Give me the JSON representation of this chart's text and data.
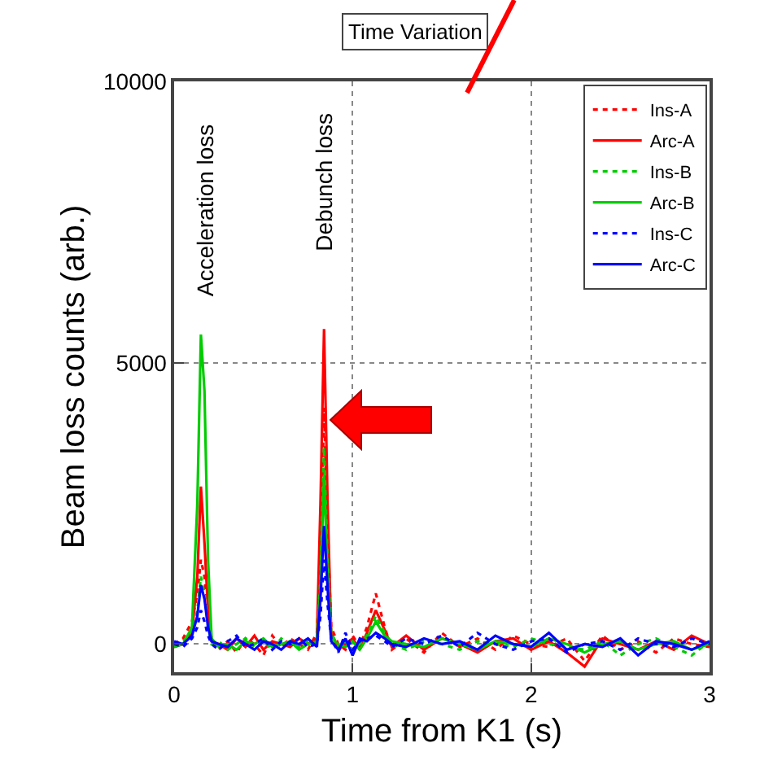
{
  "chart_data": {
    "type": "line",
    "xlabel": "Time from K1 (s)",
    "ylabel": "Beam loss counts (arb.)",
    "xlim": [
      0,
      3
    ],
    "xticks": [
      0,
      1,
      2,
      3
    ],
    "ylim": [
      -500,
      10000
    ],
    "yticks": [
      0,
      5000,
      10000
    ],
    "grid": true,
    "legend": "top right",
    "marker": "none",
    "annotations": [
      "Time Variation",
      "Acceleration loss",
      "Debunch loss"
    ],
    "x": [
      0,
      0.05,
      0.1,
      0.13,
      0.15,
      0.17,
      0.19,
      0.21,
      0.25,
      0.3,
      0.35,
      0.4,
      0.45,
      0.5,
      0.55,
      0.6,
      0.65,
      0.7,
      0.75,
      0.8,
      0.82,
      0.84,
      0.86,
      0.88,
      0.92,
      0.96,
      1.0,
      1.04,
      1.08,
      1.13,
      1.18,
      1.22,
      1.3,
      1.4,
      1.5,
      1.6,
      1.7,
      1.8,
      1.9,
      2.0,
      2.1,
      2.2,
      2.3,
      2.4,
      2.5,
      2.6,
      2.7,
      2.8,
      2.9,
      3.0
    ],
    "series": [
      {
        "name": "Ins-A",
        "color": "#ff0000",
        "line_style": "dotted",
        "values": [
          0,
          100,
          400,
          900,
          1500,
          1200,
          500,
          100,
          -100,
          50,
          -150,
          100,
          0,
          -200,
          150,
          -50,
          100,
          0,
          -100,
          200,
          1500,
          4200,
          2000,
          300,
          0,
          -100,
          150,
          -50,
          300,
          900,
          300,
          -100,
          100,
          -150,
          200,
          -50,
          100,
          -100,
          150,
          0,
          -50,
          100,
          -300,
          150,
          -100,
          50,
          -150,
          100,
          0,
          -50
        ]
      },
      {
        "name": "Arc-A",
        "color": "#ff0000",
        "line_style": "solid",
        "values": [
          -50,
          0,
          200,
          1200,
          2800,
          1800,
          600,
          50,
          0,
          -100,
          100,
          -50,
          150,
          -100,
          50,
          0,
          -50,
          100,
          0,
          100,
          2500,
          5600,
          2500,
          200,
          -100,
          0,
          100,
          -100,
          200,
          600,
          250,
          -50,
          150,
          -100,
          100,
          0,
          -150,
          50,
          100,
          -100,
          50,
          -150,
          -400,
          100,
          0,
          -100,
          50,
          -100,
          150,
          0
        ]
      },
      {
        "name": "Ins-B",
        "color": "#00cc00",
        "line_style": "dotted",
        "values": [
          0,
          50,
          200,
          600,
          1200,
          900,
          300,
          0,
          50,
          -100,
          0,
          100,
          -50,
          50,
          -100,
          100,
          0,
          -50,
          50,
          0,
          1200,
          3500,
          1500,
          200,
          -50,
          50,
          -100,
          0,
          150,
          500,
          200,
          0,
          -100,
          50,
          0,
          -100,
          50,
          0,
          -50,
          100,
          0,
          -50,
          -100,
          50,
          -200,
          0,
          100,
          -50,
          -200,
          50
        ]
      },
      {
        "name": "Arc-B",
        "color": "#00cc00",
        "line_style": "solid",
        "values": [
          -50,
          0,
          300,
          2500,
          5500,
          4500,
          1500,
          100,
          -50,
          0,
          -100,
          50,
          0,
          100,
          -50,
          0,
          50,
          -100,
          0,
          50,
          1000,
          3000,
          1200,
          100,
          0,
          -50,
          50,
          -100,
          100,
          400,
          150,
          50,
          0,
          -50,
          100,
          0,
          -100,
          50,
          0,
          -50,
          100,
          0,
          -150,
          0,
          50,
          -100,
          0,
          50,
          -100,
          0
        ]
      },
      {
        "name": "Ins-C",
        "color": "#0000ff",
        "line_style": "dotted",
        "values": [
          0,
          -50,
          100,
          300,
          600,
          400,
          150,
          0,
          -100,
          50,
          150,
          -50,
          0,
          100,
          -100,
          50,
          0,
          100,
          -50,
          0,
          500,
          1500,
          700,
          100,
          -150,
          200,
          -100,
          50,
          100,
          150,
          50,
          -50,
          100,
          0,
          150,
          -50,
          200,
          0,
          -100,
          50,
          100,
          -150,
          0,
          50,
          -100,
          100,
          0,
          -50,
          100,
          0
        ]
      },
      {
        "name": "Arc-C",
        "color": "#0000ff",
        "line_style": "solid",
        "values": [
          50,
          0,
          150,
          500,
          1050,
          800,
          300,
          50,
          0,
          -50,
          100,
          0,
          -100,
          50,
          0,
          -100,
          50,
          0,
          100,
          -50,
          800,
          2100,
          1000,
          50,
          -100,
          100,
          -200,
          100,
          50,
          200,
          100,
          0,
          -50,
          100,
          0,
          50,
          -100,
          150,
          0,
          -50,
          200,
          -100,
          0,
          -50,
          100,
          -200,
          50,
          0,
          -100,
          50
        ]
      }
    ]
  }
}
